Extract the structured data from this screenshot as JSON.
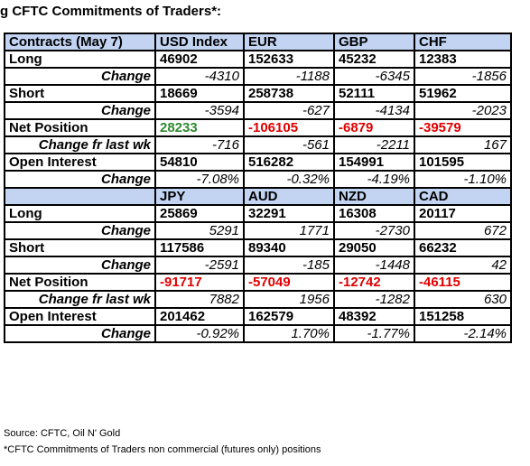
{
  "title": "g CFTC Commitments of Traders*:",
  "table1": {
    "header": [
      "Contracts (May 7)",
      "USD Index",
      "EUR",
      "GBP",
      "CHF"
    ],
    "long": [
      "Long",
      "46902",
      "152633",
      "45232",
      "12383"
    ],
    "long_change": [
      "Change",
      "-4310",
      "-1188",
      "-6345",
      "-1856"
    ],
    "short": [
      "Short",
      "18669",
      "258738",
      "52111",
      "51962"
    ],
    "short_change": [
      "Change",
      "-3594",
      "-627",
      "-4134",
      "-2023"
    ],
    "net": [
      "Net Position",
      "28233",
      "-106105",
      "-6879",
      "-39579"
    ],
    "net_change": [
      "Change fr last wk",
      "-716",
      "-561",
      "-2211",
      "167"
    ],
    "oi": [
      "Open Interest",
      "54810",
      "516282",
      "154991",
      "101595"
    ],
    "oi_change": [
      "Change",
      "-7.08%",
      "-0.32%",
      "-4.19%",
      "-1.10%"
    ]
  },
  "table2": {
    "header": [
      "",
      "JPY",
      "AUD",
      "NZD",
      "CAD"
    ],
    "long": [
      "Long",
      "25869",
      "32291",
      "16308",
      "20117"
    ],
    "long_change": [
      "Change",
      "5291",
      "1771",
      "-2730",
      "672"
    ],
    "short": [
      "Short",
      "117586",
      "89340",
      "29050",
      "66232"
    ],
    "short_change": [
      "Change",
      "-2591",
      "-185",
      "-1448",
      "42"
    ],
    "net": [
      "Net Position",
      "-91717",
      "-57049",
      "-12742",
      "-46115"
    ],
    "net_change": [
      "Change fr last wk",
      "7882",
      "1956",
      "-1282",
      "630"
    ],
    "oi": [
      "Open Interest",
      "201462",
      "162579",
      "48392",
      "151258"
    ],
    "oi_change": [
      "Change",
      "-0.92%",
      "1.70%",
      "-1.77%",
      "-2.14%"
    ]
  },
  "footer": {
    "source": "Source: CFTC, Oil N' Gold",
    "note": "*CFTC Commitments of Traders non commercial (futures only) positions"
  },
  "colors": {
    "header_bg": "#c2d4f2",
    "positive": "#2e8b2e",
    "negative": "#e00000"
  }
}
